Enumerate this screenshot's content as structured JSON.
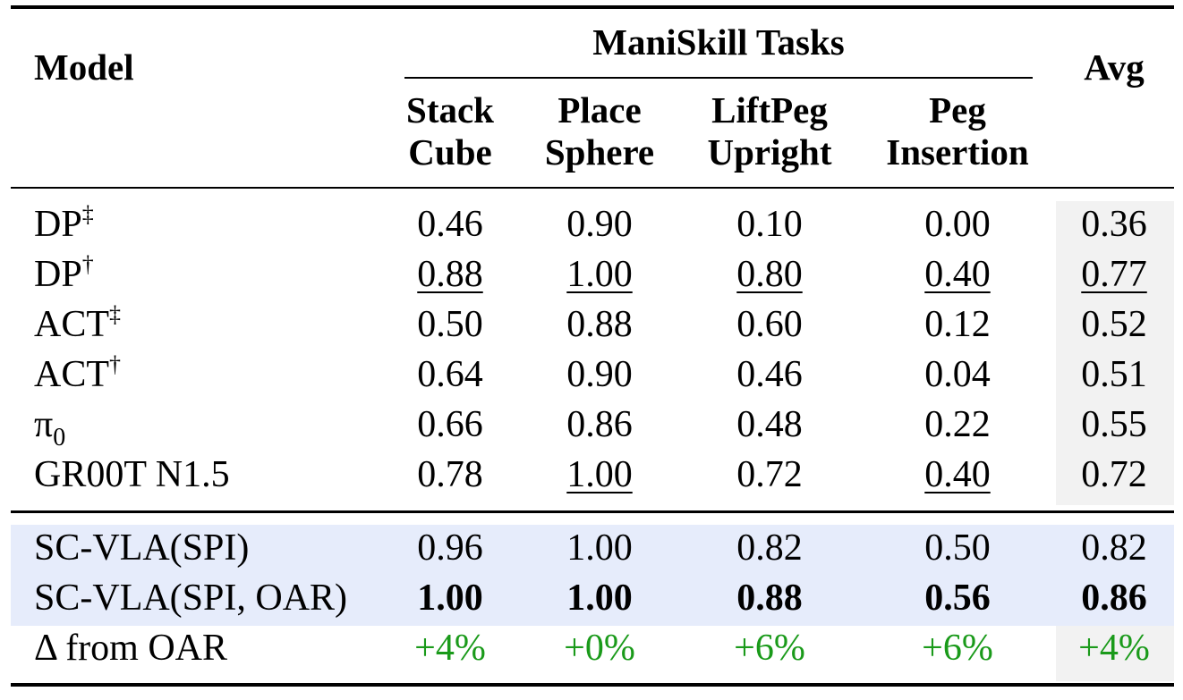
{
  "header": {
    "model": "Model",
    "group": "ManiSkill Tasks",
    "avg": "Avg",
    "tasks": [
      {
        "line1": "Stack",
        "line2": "Cube"
      },
      {
        "line1": "Place",
        "line2": "Sphere"
      },
      {
        "line1": "LiftPeg",
        "line2": "Upright"
      },
      {
        "line1": "Peg",
        "line2": "Insertion"
      }
    ]
  },
  "baselines": [
    {
      "base": "DP",
      "sup": "‡",
      "sub": "",
      "values": [
        "0.46",
        "0.90",
        "0.10",
        "0.00"
      ],
      "avg": "0.36",
      "underline": [
        false,
        false,
        false,
        false,
        false
      ]
    },
    {
      "base": "DP",
      "sup": "†",
      "sub": "",
      "values": [
        "0.88",
        "1.00",
        "0.80",
        "0.40"
      ],
      "avg": "0.77",
      "underline": [
        true,
        true,
        true,
        true,
        true
      ]
    },
    {
      "base": "ACT",
      "sup": "‡",
      "sub": "",
      "values": [
        "0.50",
        "0.88",
        "0.60",
        "0.12"
      ],
      "avg": "0.52",
      "underline": [
        false,
        false,
        false,
        false,
        false
      ]
    },
    {
      "base": "ACT",
      "sup": "†",
      "sub": "",
      "values": [
        "0.64",
        "0.90",
        "0.46",
        "0.04"
      ],
      "avg": "0.51",
      "underline": [
        false,
        false,
        false,
        false,
        false
      ]
    },
    {
      "base": "π",
      "sup": "",
      "sub": "0",
      "values": [
        "0.66",
        "0.86",
        "0.48",
        "0.22"
      ],
      "avg": "0.55",
      "underline": [
        false,
        false,
        false,
        false,
        false
      ]
    },
    {
      "base": "GR00T N1.5",
      "sup": "",
      "sub": "",
      "values": [
        "0.78",
        "1.00",
        "0.72",
        "0.40"
      ],
      "avg": "0.72",
      "underline": [
        false,
        true,
        false,
        true,
        false
      ]
    }
  ],
  "ours": [
    {
      "name": "SC-VLA(SPI)",
      "values": [
        "0.96",
        "1.00",
        "0.82",
        "0.50"
      ],
      "avg": "0.82",
      "bold": false
    },
    {
      "name": "SC-VLA(SPI, OAR)",
      "values": [
        "1.00",
        "1.00",
        "0.88",
        "0.56"
      ],
      "avg": "0.86",
      "bold": true
    }
  ],
  "delta": {
    "name": "Δ from OAR",
    "values": [
      "+4%",
      "+0%",
      "+6%",
      "+6%"
    ],
    "avg": "+4%"
  },
  "colors": {
    "delta_text": "#1a9a1a",
    "ours_bg": "#e6ecfb",
    "avg_bg": "#f2f2f2"
  }
}
